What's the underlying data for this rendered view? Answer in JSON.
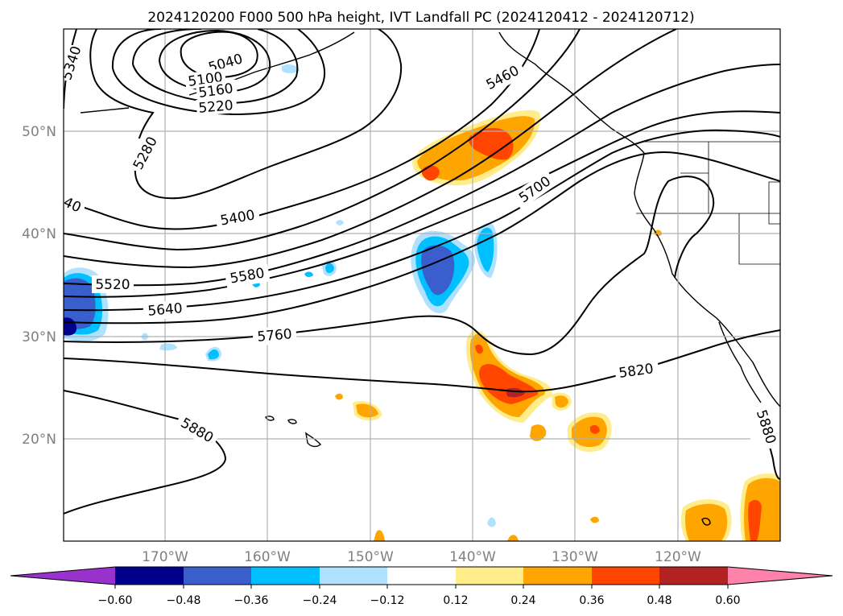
{
  "title": "2024120200 F000 500 hPa height, IVT Landfall PC (2024120412 - 2024120712)",
  "map": {
    "lon_ticks": [
      "170°W",
      "160°W",
      "150°W",
      "140°W",
      "130°W",
      "120°W"
    ],
    "lat_ticks": [
      "50°N",
      "40°N",
      "30°N",
      "20°N"
    ],
    "contour_labels": [
      "5340",
      "5040",
      "5100",
      "5160",
      "5220",
      "5280",
      "5460",
      "40",
      "5400",
      "5700",
      "5520",
      "5580",
      "5640",
      "5760",
      "5820",
      "5880",
      "5880"
    ]
  },
  "colorbar": {
    "colors": [
      "#9932cc",
      "#00008b",
      "#3a5fcd",
      "#00bfff",
      "#b0e2ff",
      "#ffffff",
      "#ffec8b",
      "#ffa500",
      "#ff4500",
      "#b22222",
      "#ff82ab"
    ],
    "ticks": [
      "−0.60",
      "−0.48",
      "−0.36",
      "−0.24",
      "−0.12",
      "0.12",
      "0.24",
      "0.36",
      "0.48",
      "0.60"
    ]
  },
  "colors": {
    "grid": "#b0b0b0",
    "axis_labels": "#808080",
    "contour": "#000000"
  }
}
